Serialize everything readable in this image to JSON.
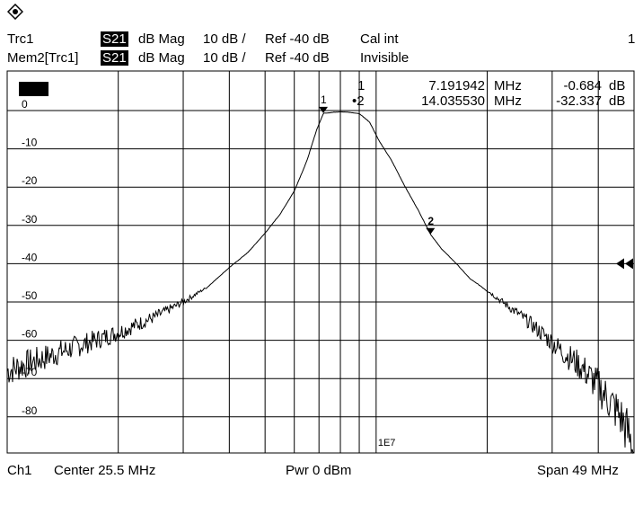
{
  "header": {
    "trc1": {
      "name": "Trc1",
      "param": "S21",
      "format": "dB Mag",
      "scale": "10 dB /",
      "ref": "Ref -40 dB",
      "status": "Cal int",
      "channel": "1"
    },
    "mem2": {
      "name": "Mem2[Trc1]",
      "param": "S21",
      "format": "dB Mag",
      "scale": "10 dB /",
      "ref": "Ref -40 dB",
      "status": "Invisible"
    }
  },
  "footer": {
    "channel": "Ch1",
    "center": "Center  25.5 MHz",
    "power": "Pwr  0 dBm",
    "span": "Span  49 MHz"
  },
  "markers": [
    {
      "label": "1",
      "freq": "7.191942",
      "unit": "MHz",
      "value": "-0.684",
      "vunit": "dB"
    },
    {
      "label": "2",
      "freq": "14.035530",
      "unit": "MHz",
      "value": "-32.337",
      "vunit": "dB"
    }
  ],
  "colors": {
    "trace": "#000000",
    "grid": "#000000",
    "background": "#ffffff"
  },
  "chart_data": {
    "type": "line",
    "xlabel": "",
    "ylabel": "",
    "x_annotation": "1E7",
    "xlim": [
      1,
      50
    ],
    "ylim": [
      -90,
      0
    ],
    "y_ticks": [
      0,
      -10,
      -20,
      -30,
      -40,
      -50,
      -60,
      -70,
      -80
    ],
    "y_tick_labels": [
      "0",
      "-10",
      "-20",
      "-30",
      "-40",
      "-50",
      "-60",
      "-70",
      "-80"
    ],
    "x_scale": "log",
    "grid": true,
    "ref_level": -40,
    "ref_arrow": "right edge",
    "series": [
      {
        "x": [
          1.0,
          1.5,
          2.0,
          2.5,
          3.0,
          3.5,
          4.0,
          4.5,
          5.0,
          5.5,
          6.0,
          6.5,
          6.9,
          7.2,
          7.6,
          8.0,
          8.5,
          9.0,
          9.6,
          10.2,
          11.0,
          12.0,
          13.0,
          14.04,
          15.0,
          16.5,
          18.0,
          20.0,
          22.0,
          25.0,
          28.0,
          32.0,
          36.0,
          40.0,
          43.0,
          46.0,
          48.0,
          50.0
        ],
        "y": [
          -68,
          -62,
          -58,
          -54,
          -50,
          -46,
          -41,
          -37,
          -32,
          -27,
          -21,
          -13,
          -5,
          -0.7,
          -0.5,
          -0.3,
          -0.5,
          -0.8,
          -3,
          -8,
          -13,
          -20,
          -26,
          -32.3,
          -36,
          -40,
          -44,
          -47,
          -50,
          -54,
          -58,
          -63,
          -67,
          -72,
          -76,
          -80,
          -84,
          -89
        ]
      }
    ]
  }
}
